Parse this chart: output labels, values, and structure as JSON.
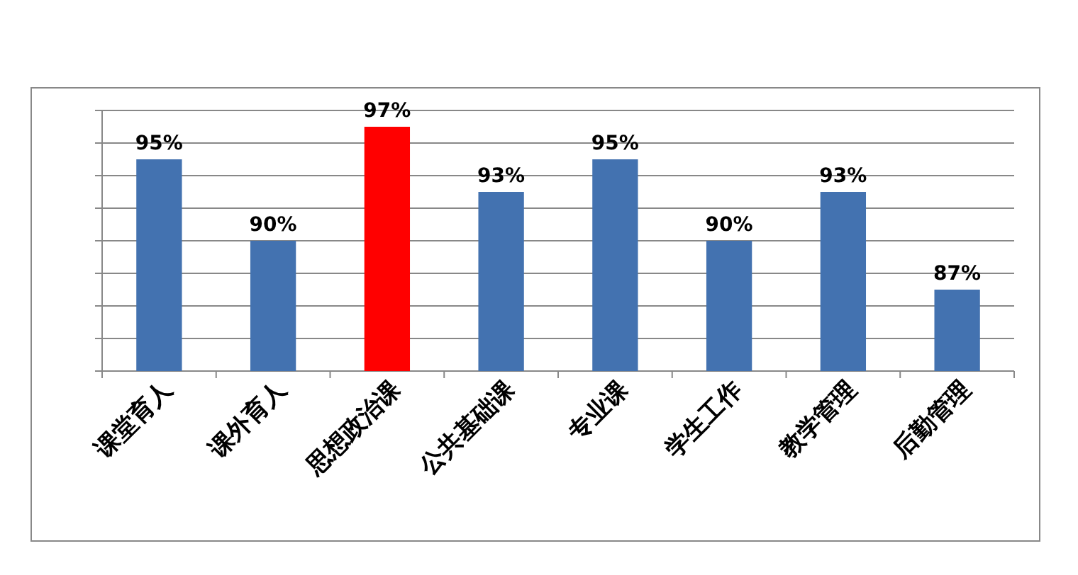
{
  "chart_data": {
    "type": "bar",
    "categories": [
      "课堂育人",
      "课外育人",
      "思想政治课",
      "公共基础课",
      "专业课",
      "学生工作",
      "教学管理",
      "后勤管理"
    ],
    "values": [
      95,
      90,
      97,
      93,
      95,
      90,
      93,
      87
    ],
    "colors": [
      "#4372b0",
      "#4372b0",
      "#ff0000",
      "#4372b0",
      "#4372b0",
      "#4372b0",
      "#4372b0",
      "#4372b0"
    ],
    "value_labels": [
      "95%",
      "90%",
      "97%",
      "93%",
      "95%",
      "90%",
      "93%",
      "87%"
    ],
    "ylim": [
      82,
      98
    ],
    "yticks": [
      {
        "value": 82,
        "label": null
      },
      {
        "value": 84,
        "label": null
      },
      {
        "value": 86,
        "label": null
      },
      {
        "value": 88,
        "label": null
      },
      {
        "value": 90,
        "label": null
      },
      {
        "value": 92,
        "label": null
      },
      {
        "value": 94,
        "label": null
      },
      {
        "value": 96,
        "label": null
      },
      {
        "value": 98,
        "label": null
      }
    ],
    "grid": "y",
    "tick_labels": "x"
  }
}
